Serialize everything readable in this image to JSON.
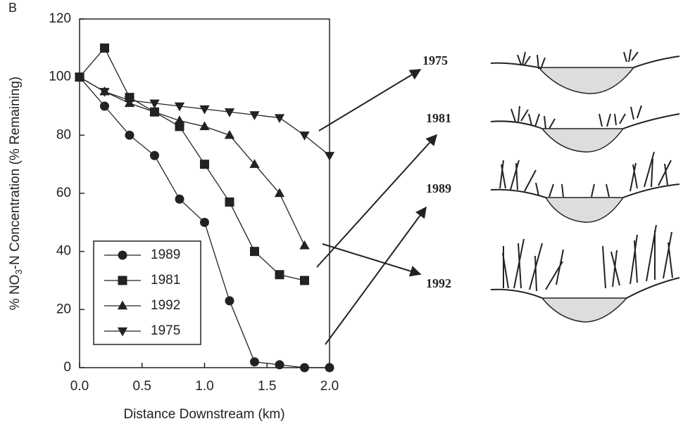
{
  "chart_data": {
    "type": "line",
    "panel_label": "B",
    "x_label": "Distance Downstream (km)",
    "y_label": [
      "% NO",
      "3",
      "-N Concentration (% Remaining)"
    ],
    "x": [
      0,
      0.2,
      0.4,
      0.6,
      0.8,
      1.0,
      1.2,
      1.4,
      1.6,
      1.8,
      2.0
    ],
    "series": [
      {
        "name": "1989",
        "marker": "circle",
        "color": "#222222",
        "values": [
          100,
          90,
          80,
          73,
          58,
          50,
          23,
          2,
          1,
          0,
          0
        ]
      },
      {
        "name": "1981",
        "marker": "square",
        "color": "#222222",
        "values": [
          100,
          110,
          93,
          88,
          83,
          70,
          57,
          40,
          32,
          30,
          null
        ]
      },
      {
        "name": "1992",
        "marker": "triangle-up",
        "color": "#222222",
        "values": [
          100,
          95,
          91,
          88,
          85,
          83,
          80,
          70,
          60,
          42,
          null
        ]
      },
      {
        "name": "1975",
        "marker": "triangle-down",
        "color": "#222222",
        "values": [
          100,
          95,
          92,
          91,
          90,
          89,
          88,
          87,
          86,
          80,
          73
        ]
      }
    ],
    "xlim": [
      0,
      2.0
    ],
    "ylim": [
      0,
      120
    ],
    "xticks": [
      {
        "value": 0,
        "label": "0.0"
      },
      0.5,
      {
        "value": 1,
        "label": "1.0"
      },
      1.5,
      {
        "value": 2,
        "label": "2.0"
      }
    ],
    "yticks": [
      0,
      20,
      40,
      60,
      80,
      100,
      120
    ],
    "grid": false,
    "legend": "lower left",
    "annotations": [
      "1975",
      "1981",
      "1989",
      "1992"
    ]
  }
}
